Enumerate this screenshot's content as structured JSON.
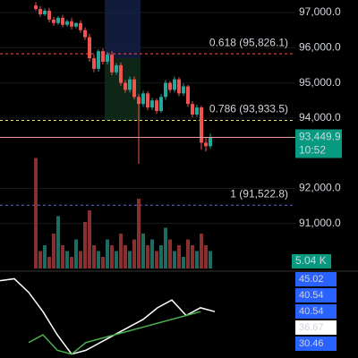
{
  "chart_data": {
    "type": "candlestick",
    "ylim": [
      89723,
      97356
    ],
    "yticks": [
      {
        "value": 97000,
        "label": "97,000.0"
      },
      {
        "value": 96000,
        "label": "96,000.0"
      },
      {
        "value": 95000,
        "label": "95,000.0"
      },
      {
        "value": 94000,
        "label": "94,000.0"
      },
      {
        "value": 92000,
        "label": "92,000.0"
      },
      {
        "value": 91000,
        "label": "91,000.0"
      }
    ],
    "up_color": "#26a69a",
    "down_color": "#ef5350",
    "open": [
      97200,
      97100,
      96950,
      97050,
      96800,
      96700,
      96850,
      96650,
      96750,
      96600,
      96700,
      96500,
      96300,
      95700,
      95400,
      95900,
      95600,
      95800,
      95300,
      95500,
      95000,
      94800,
      95100,
      94600,
      94400,
      94700,
      94300,
      94500,
      94200,
      94600,
      95000,
      94800,
      95100,
      94700,
      94900,
      94400,
      94100,
      94300,
      93300,
      93200
    ],
    "close": [
      97100,
      96950,
      97050,
      96800,
      96700,
      96850,
      96650,
      96750,
      96600,
      96700,
      96500,
      96300,
      95700,
      95400,
      95900,
      95600,
      95800,
      95300,
      95500,
      95000,
      94800,
      95100,
      94600,
      94400,
      94700,
      94300,
      94500,
      94200,
      94600,
      95000,
      94800,
      95100,
      94700,
      94900,
      94400,
      94100,
      94300,
      93300,
      93200,
      93450
    ],
    "high": [
      97300,
      97180,
      97120,
      97130,
      96880,
      96900,
      96930,
      96800,
      96850,
      96720,
      96780,
      96580,
      96400,
      95800,
      95950,
      95980,
      95880,
      95900,
      95560,
      95580,
      95080,
      95180,
      95180,
      94680,
      94780,
      94760,
      94580,
      94560,
      94680,
      95080,
      95050,
      95180,
      95160,
      94980,
      94950,
      94480,
      94380,
      94350,
      93450,
      93560
    ],
    "low": [
      97050,
      96880,
      96900,
      96720,
      96620,
      96650,
      96580,
      96600,
      96520,
      96550,
      96420,
      96220,
      95600,
      95300,
      95320,
      95520,
      95520,
      95220,
      95230,
      94920,
      94720,
      94730,
      94530,
      92700,
      94320,
      94220,
      94230,
      94120,
      94150,
      94520,
      94720,
      94730,
      94620,
      94630,
      94320,
      94020,
      94030,
      93100,
      93050,
      93130
    ],
    "volume": [
      19,
      3,
      4,
      2,
      6,
      9,
      4,
      3,
      2,
      5,
      3,
      8,
      10,
      4,
      3,
      2,
      5,
      4,
      3,
      6,
      4,
      3,
      5,
      12,
      6,
      4,
      5,
      3,
      4,
      7,
      5,
      3,
      4,
      2,
      5,
      4,
      3,
      6,
      4,
      3
    ],
    "volume_ylim": [
      0,
      20
    ],
    "volume_label": "5.04 K",
    "levels": [
      {
        "label": "0.618 (95,826.1)",
        "value": 95826.1,
        "color": "#ef5350"
      },
      {
        "label": "0.786 (93,933.5)",
        "value": 93933.5,
        "color": "#e6e07a"
      },
      {
        "label": "1 (91,522.8)",
        "value": 91522.8,
        "color": "#5c6bc0"
      }
    ],
    "last_price": {
      "value": 93449.9,
      "label": "93,449.9",
      "time": "10:52"
    },
    "indicator": {
      "ylim": [
        25,
        47
      ],
      "x": [
        0,
        1,
        2,
        3,
        4,
        5,
        6,
        7,
        8,
        9,
        10,
        11,
        12,
        13,
        14,
        15
      ],
      "series": [
        {
          "color": "#ffffff",
          "values": [
            45,
            45.5,
            42,
            37,
            31,
            26,
            27,
            29,
            31,
            33,
            35,
            38,
            40,
            36,
            38,
            37
          ]
        },
        {
          "color": "#4caf50",
          "values": [
            null,
            null,
            29,
            31,
            27,
            26,
            29,
            30,
            31,
            32,
            33,
            34,
            35,
            36,
            37,
            null
          ]
        }
      ],
      "labels": [
        45.02,
        40.54,
        40.54,
        36.67,
        30.46
      ]
    }
  }
}
